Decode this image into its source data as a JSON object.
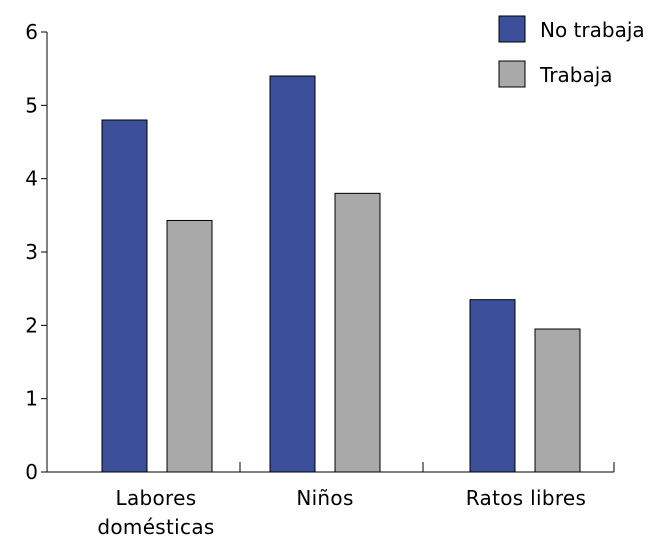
{
  "chart_data": {
    "type": "bar",
    "categories": [
      [
        "Labores",
        "domésticas"
      ],
      [
        "Niños"
      ],
      [
        "Ratos libres"
      ]
    ],
    "series": [
      {
        "name": "No trabaja",
        "color": "#3b4f9b",
        "values": [
          4.8,
          5.4,
          2.35
        ]
      },
      {
        "name": "Trabaja",
        "color": "#a9a9a9",
        "values": [
          3.43,
          3.8,
          1.95
        ]
      }
    ],
    "ylim": [
      0,
      6
    ],
    "yticks": [
      "0",
      "1",
      "2",
      "3",
      "4",
      "5",
      "6"
    ],
    "xlabel": "",
    "ylabel": "",
    "title": "",
    "grid": false,
    "legend_position": "top-right"
  }
}
